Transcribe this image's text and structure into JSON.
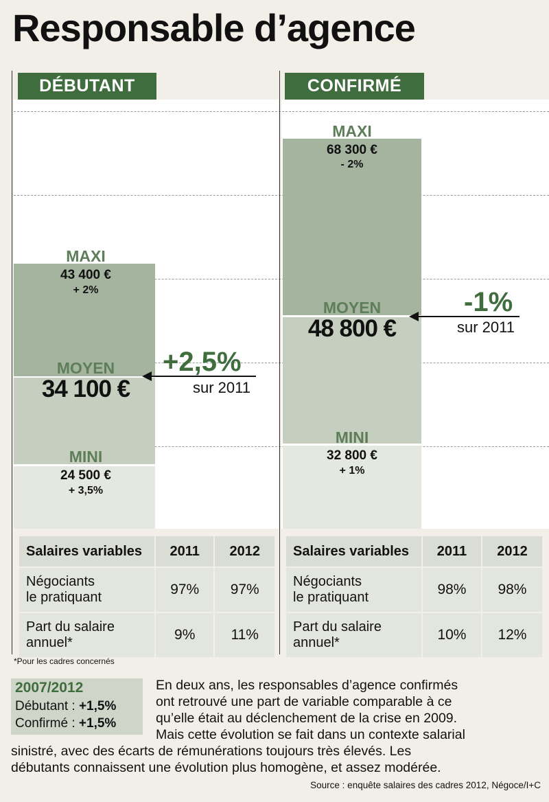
{
  "title": "Responsable d’agence",
  "colors": {
    "header": "#3f6d3e",
    "maxi_bar": "#a5b49e",
    "moyen_bar": "#c6cfbf",
    "mini_bar": "#e4e8e0",
    "accent": "#3f6d3e"
  },
  "chart_data": [
    {
      "type": "bar",
      "title": "DÉBUTANT",
      "levels": [
        {
          "label": "MAXI",
          "value": 43400,
          "value_text": "43 400 €",
          "change_text": "+ 2%"
        },
        {
          "label": "MOYEN",
          "value": 34100,
          "value_text": "34 100 €"
        },
        {
          "label": "MINI",
          "value": 24500,
          "value_text": "24 500 €",
          "change_text": "+ 3,5%"
        }
      ],
      "evolution": {
        "pct_text": "+2,5%",
        "sub_text": "sur 2011"
      },
      "grid": true
    },
    {
      "type": "bar",
      "title": "CONFIRMÉ",
      "levels": [
        {
          "label": "MAXI",
          "value": 68300,
          "value_text": "68 300 €",
          "change_text": "- 2%"
        },
        {
          "label": "MOYEN",
          "value": 48800,
          "value_text": "48 800 €"
        },
        {
          "label": "MINI",
          "value": 32800,
          "value_text": "32 800 €",
          "change_text": "+ 1%"
        }
      ],
      "evolution": {
        "pct_text": "-1%",
        "sub_text": "sur 2011"
      },
      "grid": true
    }
  ],
  "tables": [
    {
      "headers": [
        "Salaires variables",
        "2011",
        "2012"
      ],
      "rows": [
        {
          "label_1": "Négociants",
          "label_2": "le pratiquant",
          "v2011": "97%",
          "v2012": "97%"
        },
        {
          "label_1": "Part du salaire",
          "label_2": "annuel*",
          "v2011": "9%",
          "v2012": "11%"
        }
      ]
    },
    {
      "headers": [
        "Salaires variables",
        "2011",
        "2012"
      ],
      "rows": [
        {
          "label_1": "Négociants",
          "label_2": "le pratiquant",
          "v2011": "98%",
          "v2012": "98%"
        },
        {
          "label_1": "Part du salaire",
          "label_2": "annuel*",
          "v2011": "10%",
          "v2012": "12%"
        }
      ]
    }
  ],
  "footnote": "*Pour les cadres concernés",
  "summary_box": {
    "title": "2007/2012",
    "debutant_label": "Débutant : ",
    "debutant_value": "+1,5%",
    "confirme_label": "Confirmé : ",
    "confirme_value": "+1,5%"
  },
  "paragraph_lines": [
    "En deux ans, les responsables d’agence confirmés",
    "ont retrouvé une part de variable comparable à ce",
    "qu’elle était au déclenchement de la crise en 2009.",
    "Mais cette évolution se fait dans un contexte salarial",
    "sinistré, avec des écarts de rémunérations toujours très élevés. Les",
    "débutants connaissent une évolution plus homogène, et assez modérée."
  ],
  "source": "Source : enquête salaires des cadres 2012, Négoce/I+C"
}
